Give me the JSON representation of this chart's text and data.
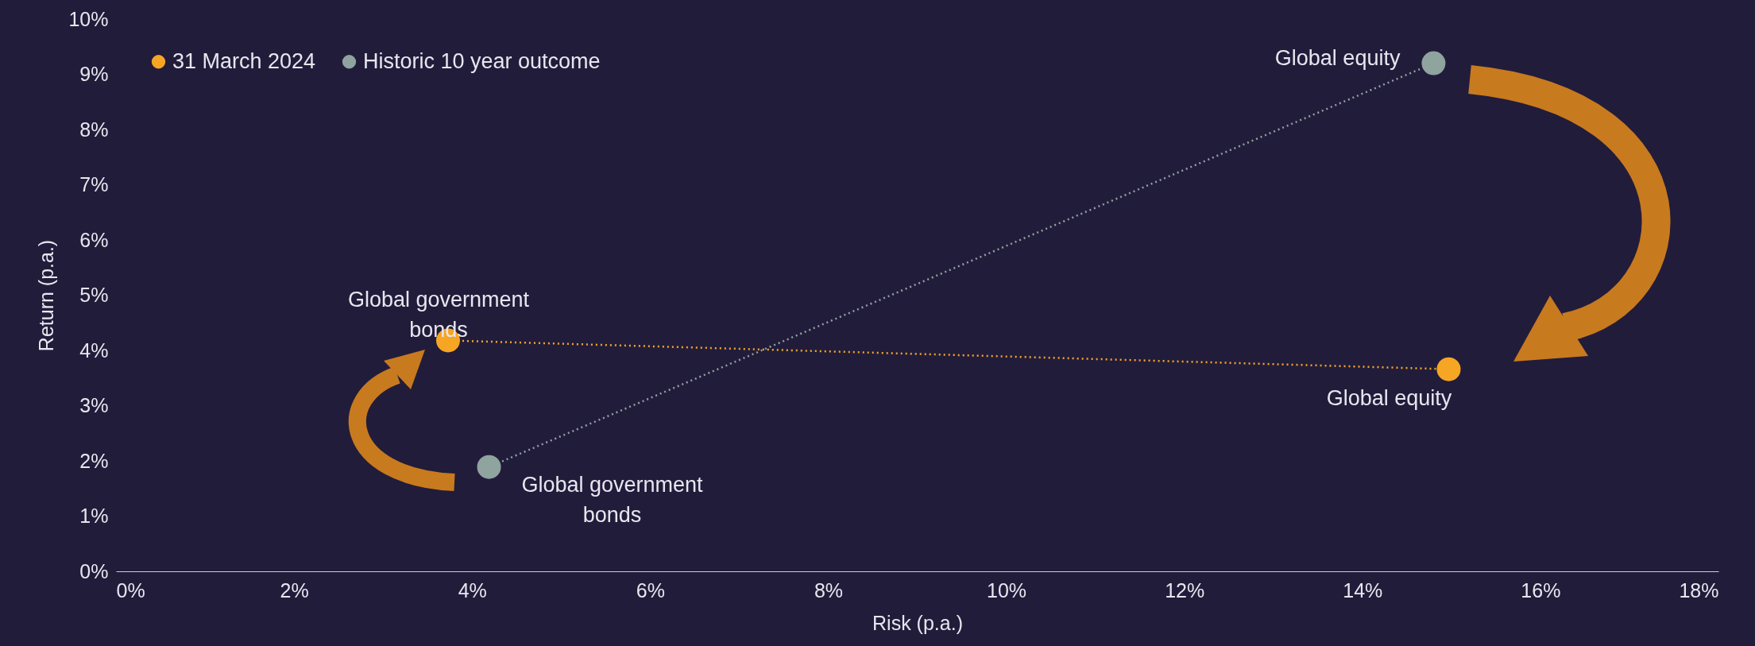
{
  "chart_data": {
    "type": "line",
    "xlabel": "Risk (p.a.)",
    "ylabel": "Return (p.a.)",
    "series": [
      {
        "name": "31 March 2024",
        "color": "#f6a623",
        "x": [
          3.73,
          14.97
        ],
        "values": [
          4.18,
          3.66
        ]
      },
      {
        "name": "Historic 10 year outcome",
        "color": "#8fa39f",
        "x": [
          4.19,
          14.8
        ],
        "values": [
          1.89,
          9.2
        ]
      }
    ],
    "xlim": [
      0,
      18
    ],
    "xticks": [
      {
        "value": 0,
        "label": "0%"
      },
      {
        "value": 2,
        "label": "2%"
      },
      {
        "value": 4,
        "label": "4%"
      },
      {
        "value": 6,
        "label": "6%"
      },
      {
        "value": 8,
        "label": "8%"
      },
      {
        "value": 10,
        "label": "10%"
      },
      {
        "value": 12,
        "label": "12%"
      },
      {
        "value": 14,
        "label": "14%"
      },
      {
        "value": 16,
        "label": "16%"
      },
      {
        "value": 18,
        "label": "18%"
      }
    ],
    "ylim": [
      0,
      10
    ],
    "yticks": [
      {
        "value": 0,
        "label": "0%"
      },
      {
        "value": 1,
        "label": "1%"
      },
      {
        "value": 2,
        "label": "2%"
      },
      {
        "value": 3,
        "label": "3%"
      },
      {
        "value": 4,
        "label": "4%"
      },
      {
        "value": 5,
        "label": "5%"
      },
      {
        "value": 6,
        "label": "6%"
      },
      {
        "value": 7,
        "label": "7%"
      },
      {
        "value": 8,
        "label": "8%"
      },
      {
        "value": 9,
        "label": "9%"
      },
      {
        "value": 10,
        "label": "10%"
      }
    ],
    "annotations": [
      {
        "text": "Global equity",
        "x": 14.8,
        "y": 9.2
      },
      {
        "text": "Global government bonds",
        "x": 3.73,
        "y": 4.18
      },
      {
        "text": "Global government bonds",
        "x": 4.19,
        "y": 1.89
      },
      {
        "text": "Global equity",
        "x": 14.97,
        "y": 3.66
      }
    ],
    "grid": false,
    "legend": "top left",
    "marker": "circle",
    "line_style": "dotted"
  }
}
